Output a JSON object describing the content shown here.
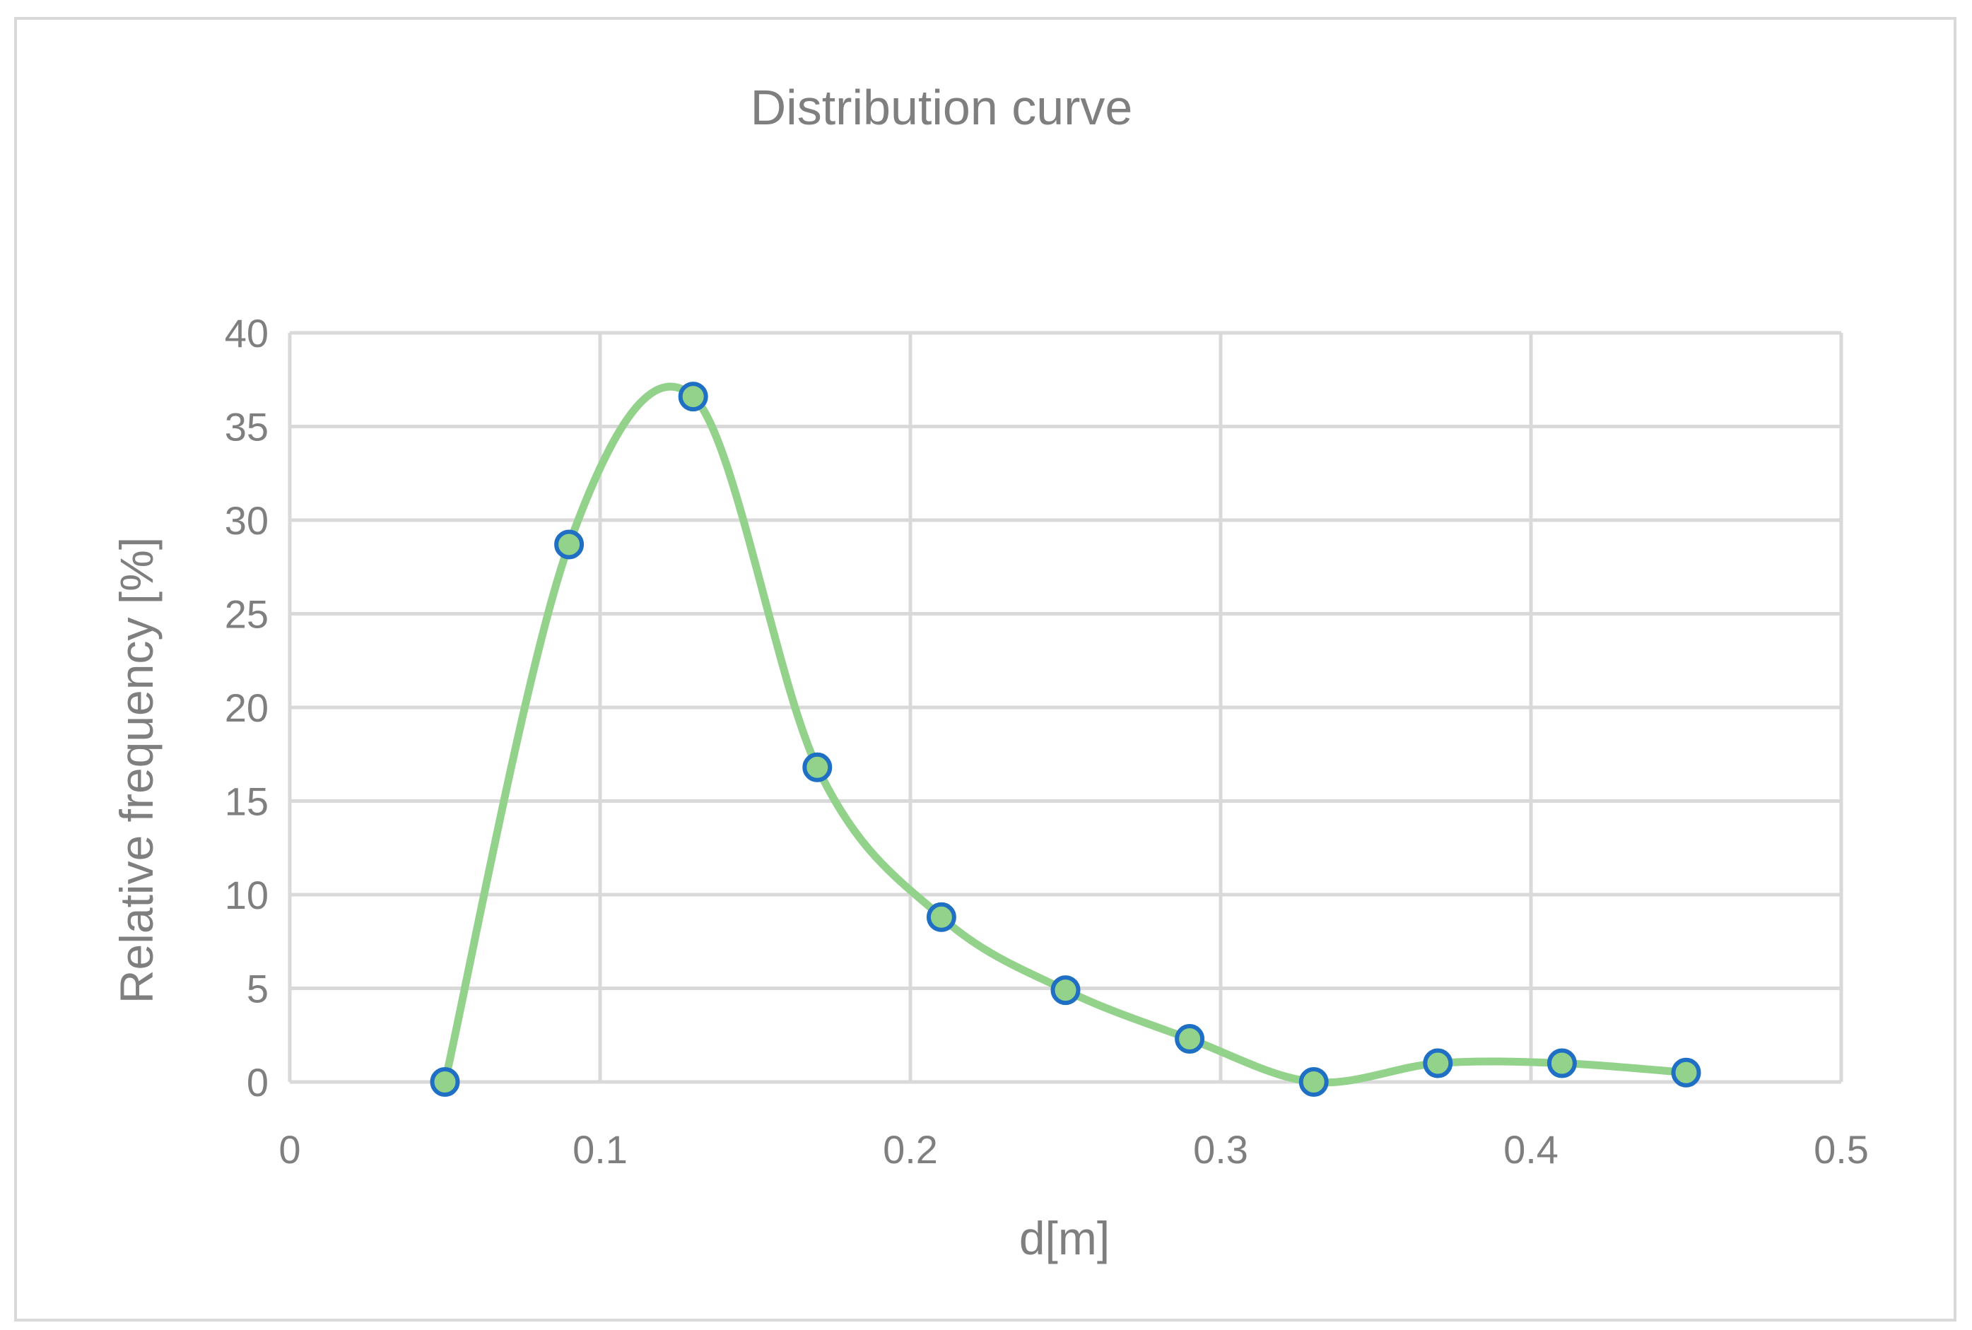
{
  "chart_data": {
    "type": "scatter",
    "smooth": true,
    "title": "Distribution curve",
    "xlabel": "d[m]",
    "ylabel": "Relative frequency [%]",
    "xlim": [
      0,
      0.5
    ],
    "ylim": [
      0,
      40
    ],
    "x_ticks": [
      0,
      0.1,
      0.2,
      0.3,
      0.4,
      0.5
    ],
    "x_tick_labels": [
      "0",
      "0.1",
      "0.2",
      "0.3",
      "0.4",
      "0.5"
    ],
    "y_ticks": [
      0,
      5,
      10,
      15,
      20,
      25,
      30,
      35,
      40
    ],
    "y_tick_labels": [
      "0",
      "5",
      "10",
      "15",
      "20",
      "25",
      "30",
      "35",
      "40"
    ],
    "grid": true,
    "legend": "none",
    "series": [
      {
        "x": [
          0.05,
          0.09,
          0.13,
          0.17,
          0.21,
          0.25,
          0.29,
          0.33,
          0.37,
          0.41,
          0.45
        ],
        "y": [
          0,
          28.7,
          36.6,
          16.8,
          8.8,
          4.9,
          2.3,
          0,
          1.0,
          1.0,
          0.5
        ],
        "line_color": "#92d28a",
        "marker_fill": "#92d28a",
        "marker_edge": "#1f6fc5"
      }
    ],
    "colors": {
      "grid": "#d9d9d9",
      "text": "#7f7f7f",
      "frame": "#d9d9d9"
    }
  }
}
